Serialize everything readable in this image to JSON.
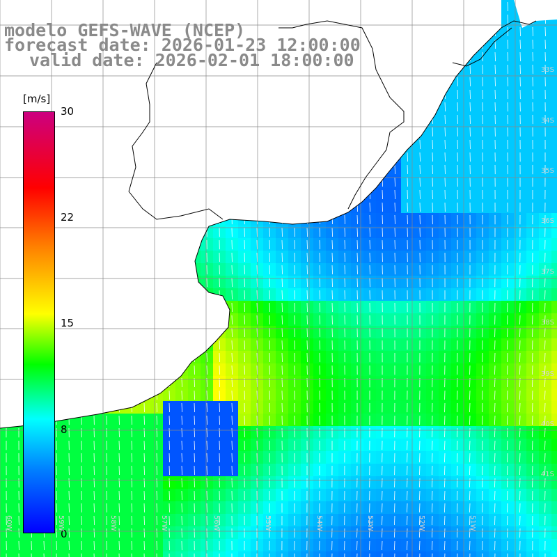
{
  "title": {
    "line1": "modelo GEFS-WAVE (NCEP)",
    "line2": "forecast date: 2026-01-23 12:00:00",
    "line3": "valid date: 2026-02-01 18:00:00"
  },
  "colorbar": {
    "unit": "[m/s]",
    "ticks": [
      "30",
      "22",
      "15",
      "8",
      "0"
    ],
    "colors": [
      "#0000ff",
      "#0080ff",
      "#00ffff",
      "#00ff00",
      "#ffff00",
      "#ff8000",
      "#ff0000",
      "#cc0080"
    ]
  },
  "axes": {
    "lat_labels": [
      "33S",
      "34S",
      "35S",
      "36S",
      "37S",
      "38S",
      "39S",
      "40S",
      "41S"
    ],
    "lon_labels": [
      "60W",
      "59W",
      "58W",
      "57W",
      "56W",
      "55W",
      "54W",
      "53W",
      "52W",
      "51W"
    ]
  },
  "colors": {
    "land": "#ffffff",
    "grid": "#888888",
    "coast": "#000000",
    "arrow": "#ffffff",
    "title": "#8a8a8a"
  }
}
